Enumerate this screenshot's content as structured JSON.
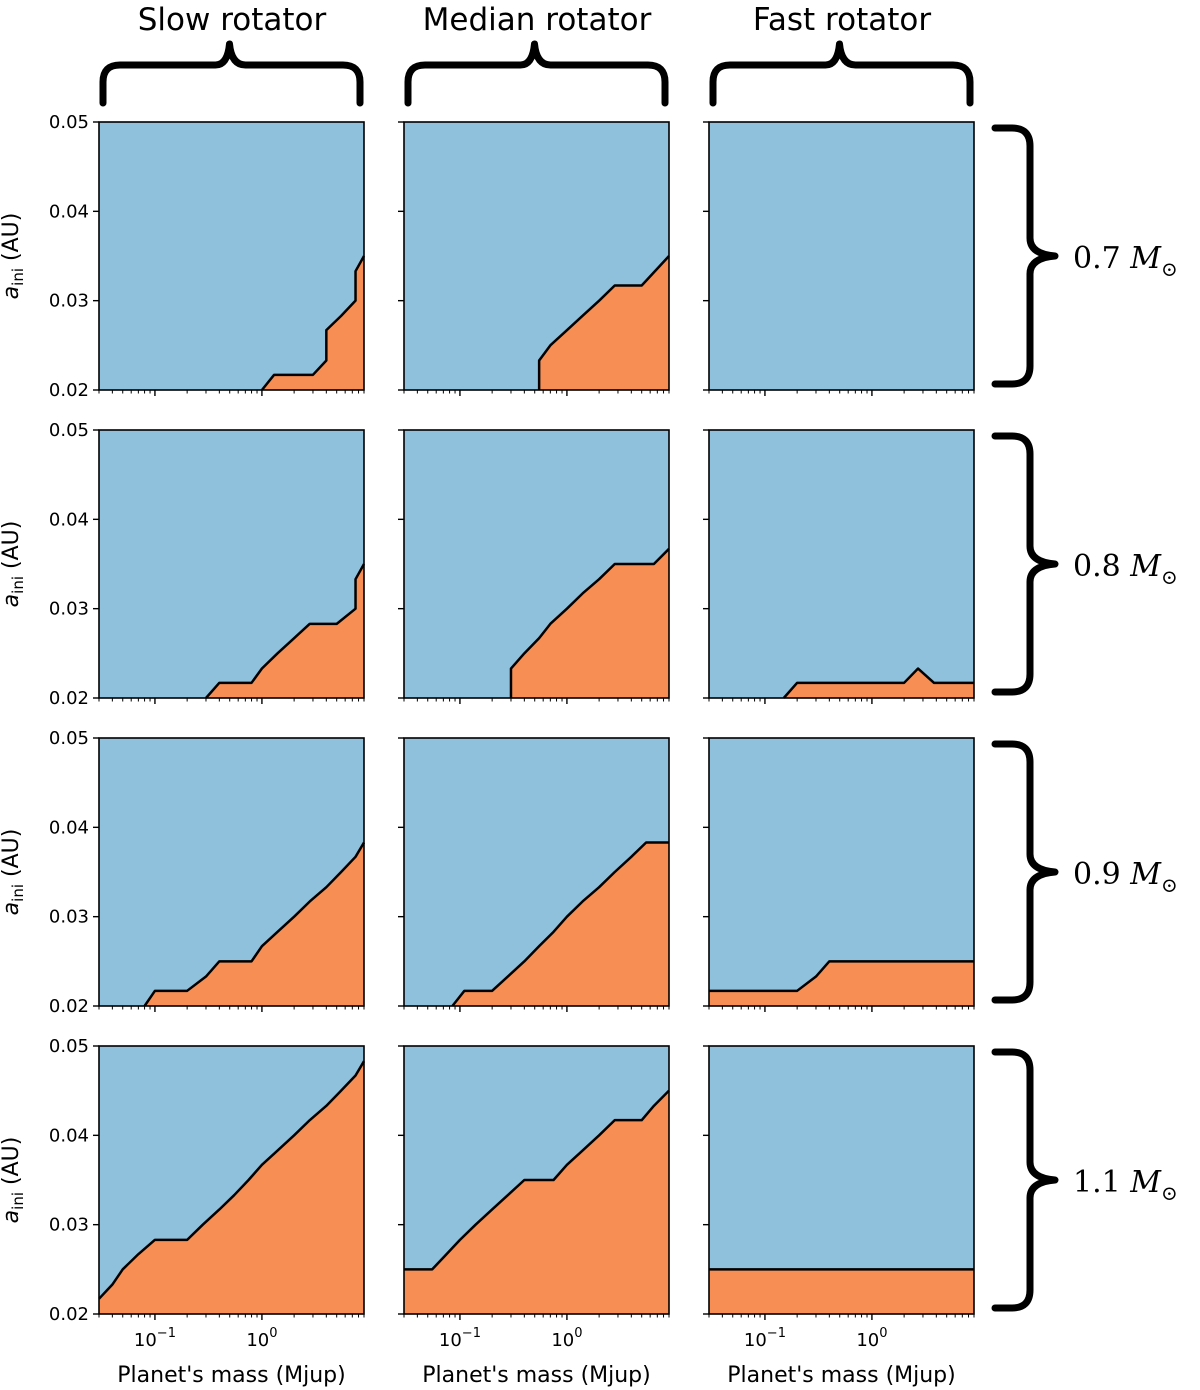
{
  "figure": {
    "column_titles": [
      "Slow rotator",
      "Median rotator",
      "Fast rotator"
    ],
    "row_labels": [
      {
        "value": "0.7",
        "unit": "M",
        "subscript": "⊙"
      },
      {
        "value": "0.8",
        "unit": "M",
        "subscript": "⊙"
      },
      {
        "value": "0.9",
        "unit": "M",
        "subscript": "⊙"
      },
      {
        "value": "1.1",
        "unit": "M",
        "subscript": "⊙"
      }
    ],
    "y_axis_label": {
      "base": "a",
      "subscript": "ini",
      "rest": " (AU)"
    },
    "x_axis_label": "Planet's mass (Mjup)",
    "y_tick_labels": [
      "0.02",
      "0.03",
      "0.04",
      "0.05"
    ],
    "x_tick_labels": [
      {
        "base": "10",
        "exp": "−1"
      },
      {
        "base": "10",
        "exp": "0"
      }
    ],
    "colors": {
      "upper_region": "#8fc1dc",
      "lower_region": "#f78e54",
      "boundary": "#000000"
    }
  },
  "chart_data": [
    {
      "type": "area",
      "row": 1,
      "col": 1,
      "column": "Slow rotator",
      "mass_label": "0.7",
      "x_scale": "log",
      "xlim": [
        0.03,
        9
      ],
      "ylim": [
        0.02,
        0.05
      ],
      "x": [
        1.0,
        1.3,
        3.0,
        4.0,
        4.0,
        5.5,
        7.5,
        7.5,
        9.0
      ],
      "y": [
        0.02,
        0.0217,
        0.0217,
        0.0233,
        0.0267,
        0.0283,
        0.03,
        0.0333,
        0.035
      ]
    },
    {
      "type": "area",
      "row": 1,
      "col": 2,
      "column": "Median rotator",
      "mass_label": "0.7",
      "x_scale": "log",
      "xlim": [
        0.03,
        9
      ],
      "ylim": [
        0.02,
        0.05
      ],
      "x": [
        0.55,
        0.55,
        0.7,
        1.0,
        1.4,
        2.0,
        2.8,
        5.0,
        9.0
      ],
      "y": [
        0.02,
        0.0233,
        0.025,
        0.0267,
        0.0283,
        0.03,
        0.0317,
        0.0317,
        0.035
      ]
    },
    {
      "type": "area",
      "row": 1,
      "col": 3,
      "column": "Fast rotator",
      "mass_label": "0.7",
      "x_scale": "log",
      "xlim": [
        0.03,
        9
      ],
      "ylim": [
        0.02,
        0.05
      ],
      "x": [],
      "y": []
    },
    {
      "type": "area",
      "row": 2,
      "col": 1,
      "column": "Slow rotator",
      "mass_label": "0.8",
      "x_scale": "log",
      "xlim": [
        0.03,
        9
      ],
      "ylim": [
        0.02,
        0.05
      ],
      "x": [
        0.3,
        0.4,
        0.8,
        1.0,
        1.4,
        2.0,
        2.8,
        5.0,
        7.5,
        7.5,
        9.0
      ],
      "y": [
        0.02,
        0.0217,
        0.0217,
        0.0233,
        0.025,
        0.0267,
        0.0283,
        0.0283,
        0.03,
        0.0333,
        0.035
      ]
    },
    {
      "type": "area",
      "row": 2,
      "col": 2,
      "column": "Median rotator",
      "mass_label": "0.8",
      "x_scale": "log",
      "xlim": [
        0.03,
        9
      ],
      "ylim": [
        0.02,
        0.05
      ],
      "x": [
        0.3,
        0.3,
        0.4,
        0.55,
        0.7,
        1.0,
        1.4,
        2.0,
        2.8,
        6.5,
        9.0
      ],
      "y": [
        0.02,
        0.0233,
        0.025,
        0.0267,
        0.0283,
        0.03,
        0.0317,
        0.0333,
        0.035,
        0.035,
        0.0367
      ]
    },
    {
      "type": "area",
      "row": 2,
      "col": 3,
      "column": "Fast rotator",
      "mass_label": "0.8",
      "x_scale": "log",
      "xlim": [
        0.03,
        9
      ],
      "ylim": [
        0.02,
        0.05
      ],
      "x": [
        0.15,
        0.2,
        2.0,
        2.7,
        3.8,
        9.0
      ],
      "y": [
        0.02,
        0.0217,
        0.0217,
        0.0233,
        0.0217,
        0.0217
      ]
    },
    {
      "type": "area",
      "row": 3,
      "col": 1,
      "column": "Slow rotator",
      "mass_label": "0.9",
      "x_scale": "log",
      "xlim": [
        0.03,
        9
      ],
      "ylim": [
        0.02,
        0.05
      ],
      "x": [
        0.08,
        0.1,
        0.2,
        0.3,
        0.4,
        0.8,
        1.0,
        1.4,
        2.0,
        2.8,
        4.0,
        5.5,
        7.5,
        9.0
      ],
      "y": [
        0.02,
        0.0217,
        0.0217,
        0.0233,
        0.025,
        0.025,
        0.0267,
        0.0283,
        0.03,
        0.0317,
        0.0333,
        0.035,
        0.0367,
        0.0383
      ]
    },
    {
      "type": "area",
      "row": 3,
      "col": 2,
      "column": "Median rotator",
      "mass_label": "0.9",
      "x_scale": "log",
      "xlim": [
        0.03,
        9
      ],
      "ylim": [
        0.02,
        0.05
      ],
      "x": [
        0.085,
        0.11,
        0.2,
        0.28,
        0.4,
        0.55,
        0.75,
        1.0,
        1.4,
        2.0,
        2.8,
        4.0,
        5.5,
        9.0
      ],
      "y": [
        0.02,
        0.0217,
        0.0217,
        0.0233,
        0.025,
        0.0267,
        0.0283,
        0.03,
        0.0317,
        0.0333,
        0.035,
        0.0367,
        0.0383,
        0.0383
      ]
    },
    {
      "type": "area",
      "row": 3,
      "col": 3,
      "column": "Fast rotator",
      "mass_label": "0.9",
      "x_scale": "log",
      "xlim": [
        0.03,
        9
      ],
      "ylim": [
        0.02,
        0.05
      ],
      "x": [
        0.03,
        0.2,
        0.3,
        0.4,
        9.0
      ],
      "y": [
        0.0217,
        0.0217,
        0.0233,
        0.025,
        0.025
      ]
    },
    {
      "type": "area",
      "row": 4,
      "col": 1,
      "column": "Slow rotator",
      "mass_label": "1.1",
      "x_scale": "log",
      "xlim": [
        0.03,
        9
      ],
      "ylim": [
        0.02,
        0.05
      ],
      "x": [
        0.03,
        0.04,
        0.05,
        0.07,
        0.1,
        0.2,
        0.28,
        0.4,
        0.55,
        0.75,
        1.0,
        1.4,
        2.0,
        2.8,
        4.0,
        5.5,
        7.5,
        9.0
      ],
      "y": [
        0.0217,
        0.0233,
        0.025,
        0.0267,
        0.0283,
        0.0283,
        0.03,
        0.0317,
        0.0333,
        0.035,
        0.0367,
        0.0383,
        0.04,
        0.0417,
        0.0433,
        0.045,
        0.0467,
        0.0483
      ]
    },
    {
      "type": "area",
      "row": 4,
      "col": 2,
      "column": "Median rotator",
      "mass_label": "1.1",
      "x_scale": "log",
      "xlim": [
        0.03,
        9
      ],
      "ylim": [
        0.02,
        0.05
      ],
      "x": [
        0.03,
        0.055,
        0.075,
        0.1,
        0.14,
        0.2,
        0.28,
        0.4,
        0.75,
        1.0,
        1.4,
        2.0,
        2.8,
        5.0,
        6.5,
        9.0
      ],
      "y": [
        0.025,
        0.025,
        0.0267,
        0.0283,
        0.03,
        0.0317,
        0.0333,
        0.035,
        0.035,
        0.0367,
        0.0383,
        0.04,
        0.0417,
        0.0417,
        0.0433,
        0.045
      ]
    },
    {
      "type": "area",
      "row": 4,
      "col": 3,
      "column": "Fast rotator",
      "mass_label": "1.1",
      "x_scale": "log",
      "xlim": [
        0.03,
        9
      ],
      "ylim": [
        0.02,
        0.05
      ],
      "x": [
        0.03,
        9.0
      ],
      "y": [
        0.025,
        0.025
      ]
    }
  ]
}
